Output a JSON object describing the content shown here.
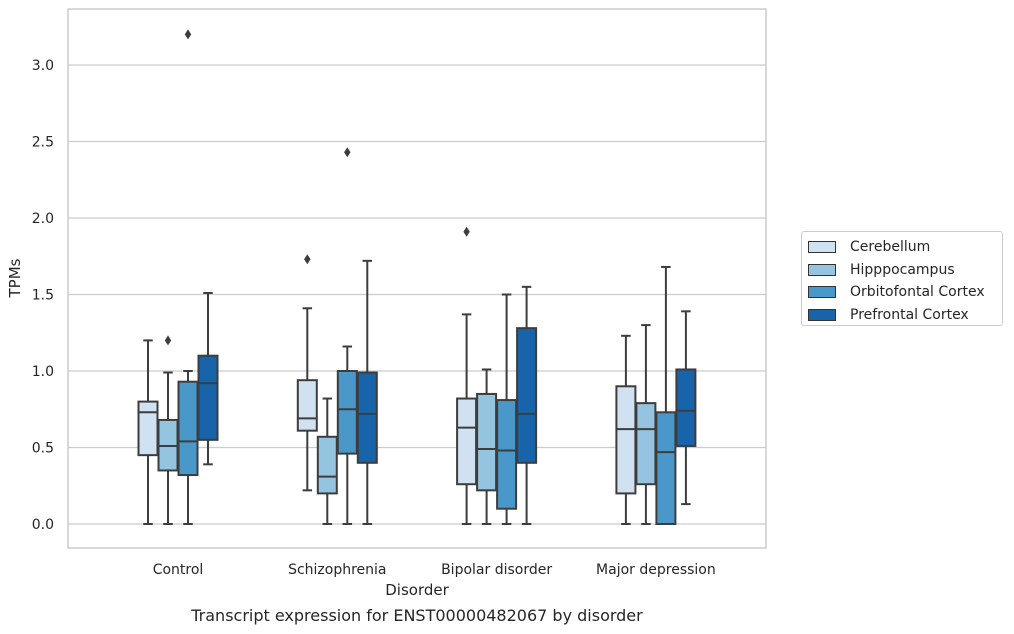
{
  "chart_data": {
    "type": "box",
    "xlabel": "Disorder",
    "ylabel": "TPMs",
    "caption": "Transcript expression for ENST00000482067 by disorder",
    "ylim": [
      -0.15,
      3.37
    ],
    "yticks": [
      0.0,
      0.5,
      1.0,
      1.5,
      2.0,
      2.5,
      3.0
    ],
    "ytick_labels": [
      "0.0",
      "0.5",
      "1.0",
      "1.5",
      "2.0",
      "2.5",
      "3.0"
    ],
    "grid": "horizontal",
    "legend_placement": "right",
    "categories": [
      "Control",
      "Schizophrenia",
      "Bipolar disorder",
      "Major depression"
    ],
    "series": [
      {
        "name": "Cerebellum",
        "color": "#d0e1f2",
        "boxes": [
          {
            "whislo": 0.0,
            "q1": 0.45,
            "med": 0.73,
            "q3": 0.8,
            "whishi": 1.2,
            "fliers": []
          },
          {
            "whislo": 0.22,
            "q1": 0.61,
            "med": 0.69,
            "q3": 0.94,
            "whishi": 1.41,
            "fliers": [
              1.73
            ]
          },
          {
            "whislo": 0.0,
            "q1": 0.26,
            "med": 0.63,
            "q3": 0.82,
            "whishi": 1.37,
            "fliers": [
              1.91
            ]
          },
          {
            "whislo": 0.0,
            "q1": 0.2,
            "med": 0.62,
            "q3": 0.9,
            "whishi": 1.23,
            "fliers": []
          }
        ]
      },
      {
        "name": "Hipppocampus",
        "color": "#94c4df",
        "boxes": [
          {
            "whislo": 0.0,
            "q1": 0.35,
            "med": 0.51,
            "q3": 0.68,
            "whishi": 0.99,
            "fliers": [
              1.2
            ]
          },
          {
            "whislo": 0.0,
            "q1": 0.2,
            "med": 0.31,
            "q3": 0.57,
            "whishi": 0.82,
            "fliers": []
          },
          {
            "whislo": 0.0,
            "q1": 0.22,
            "med": 0.49,
            "q3": 0.85,
            "whishi": 1.01,
            "fliers": []
          },
          {
            "whislo": 0.0,
            "q1": 0.26,
            "med": 0.62,
            "q3": 0.79,
            "whishi": 1.3,
            "fliers": []
          }
        ]
      },
      {
        "name": "Orbitofontal Cortex",
        "color": "#4a98c9",
        "boxes": [
          {
            "whislo": 0.0,
            "q1": 0.32,
            "med": 0.54,
            "q3": 0.93,
            "whishi": 1.0,
            "fliers": [
              3.2
            ]
          },
          {
            "whislo": 0.0,
            "q1": 0.46,
            "med": 0.75,
            "q3": 1.0,
            "whishi": 1.16,
            "fliers": [
              2.43
            ]
          },
          {
            "whislo": 0.0,
            "q1": 0.1,
            "med": 0.48,
            "q3": 0.81,
            "whishi": 1.5,
            "fliers": []
          },
          {
            "whislo": 0.0,
            "q1": 0.0,
            "med": 0.47,
            "q3": 0.73,
            "whishi": 1.68,
            "fliers": []
          }
        ]
      },
      {
        "name": "Prefrontal Cortex",
        "color": "#1764ab",
        "boxes": [
          {
            "whislo": 0.39,
            "q1": 0.55,
            "med": 0.92,
            "q3": 1.1,
            "whishi": 1.51,
            "fliers": []
          },
          {
            "whislo": 0.0,
            "q1": 0.4,
            "med": 0.72,
            "q3": 0.99,
            "whishi": 1.72,
            "fliers": []
          },
          {
            "whislo": 0.0,
            "q1": 0.4,
            "med": 0.72,
            "q3": 1.28,
            "whishi": 1.55,
            "fliers": []
          },
          {
            "whislo": 0.13,
            "q1": 0.51,
            "med": 0.74,
            "q3": 1.01,
            "whishi": 1.39,
            "fliers": []
          }
        ]
      }
    ]
  }
}
